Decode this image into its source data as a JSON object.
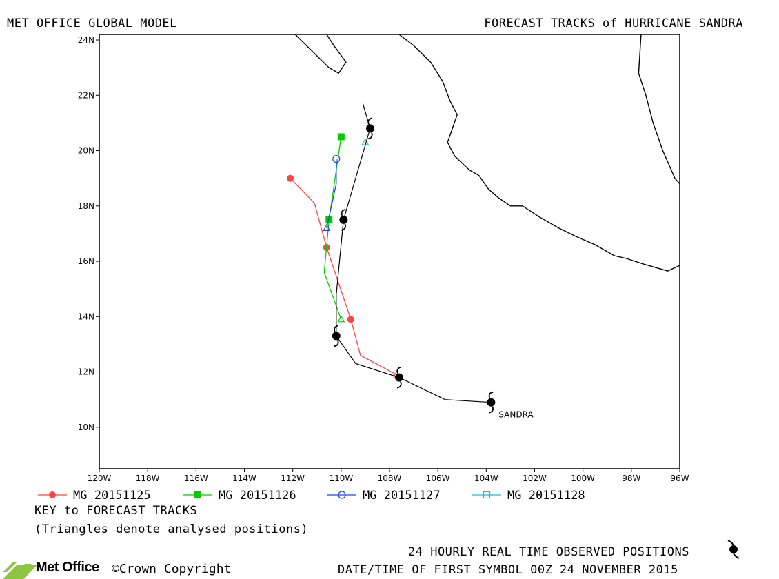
{
  "header": {
    "left_title": "MET OFFICE GLOBAL MODEL",
    "right_title": "FORECAST TRACKS of HURRICANE SANDRA"
  },
  "map": {
    "lon_range": [
      -120,
      -96
    ],
    "lat_range": [
      8.5,
      24.2
    ],
    "x_ticks": [
      {
        "v": -120,
        "label": "120W"
      },
      {
        "v": -118,
        "label": "118W"
      },
      {
        "v": -116,
        "label": "116W"
      },
      {
        "v": -114,
        "label": "114W"
      },
      {
        "v": -112,
        "label": "112W"
      },
      {
        "v": -110,
        "label": "110W"
      },
      {
        "v": -108,
        "label": "108W"
      },
      {
        "v": -106,
        "label": "106W"
      },
      {
        "v": -104,
        "label": "104W"
      },
      {
        "v": -102,
        "label": "102W"
      },
      {
        "v": -100,
        "label": "100W"
      },
      {
        "v": -98,
        "label": "98W"
      },
      {
        "v": -96,
        "label": "96W"
      }
    ],
    "y_ticks": [
      {
        "v": 10,
        "label": "10N"
      },
      {
        "v": 12,
        "label": "12N"
      },
      {
        "v": 14,
        "label": "14N"
      },
      {
        "v": 16,
        "label": "16N"
      },
      {
        "v": 18,
        "label": "18N"
      },
      {
        "v": 20,
        "label": "20N"
      },
      {
        "v": 22,
        "label": "22N"
      },
      {
        "v": 24,
        "label": "24N"
      }
    ],
    "storm_label": "SANDRA",
    "coastlines": [
      [
        [
          -111.9,
          24.2
        ],
        [
          -111.2,
          23.6
        ],
        [
          -110.5,
          23.0
        ],
        [
          -110.1,
          22.8
        ],
        [
          -109.8,
          23.2
        ],
        [
          -110.3,
          23.8
        ],
        [
          -110.6,
          24.2
        ]
      ],
      [
        [
          -107.6,
          24.2
        ],
        [
          -107.0,
          23.8
        ],
        [
          -106.3,
          23.2
        ],
        [
          -105.8,
          22.5
        ],
        [
          -105.5,
          21.8
        ],
        [
          -105.2,
          21.3
        ],
        [
          -105.4,
          20.8
        ],
        [
          -105.6,
          20.3
        ],
        [
          -105.3,
          19.8
        ],
        [
          -104.7,
          19.3
        ],
        [
          -104.3,
          19.1
        ],
        [
          -103.9,
          18.6
        ],
        [
          -103.5,
          18.3
        ],
        [
          -103.0,
          18.0
        ],
        [
          -102.5,
          18.0
        ],
        [
          -101.8,
          17.6
        ],
        [
          -101.0,
          17.2
        ],
        [
          -100.3,
          16.9
        ],
        [
          -99.5,
          16.6
        ],
        [
          -98.7,
          16.2
        ],
        [
          -98.2,
          16.1
        ],
        [
          -97.5,
          15.9
        ],
        [
          -96.5,
          15.65
        ],
        [
          -96.0,
          15.85
        ]
      ],
      [
        [
          -97.6,
          24.2
        ],
        [
          -97.7,
          22.8
        ],
        [
          -97.4,
          22.0
        ],
        [
          -97.1,
          21.0
        ],
        [
          -96.7,
          20.0
        ],
        [
          -96.2,
          19.0
        ],
        [
          -96.0,
          18.8
        ]
      ]
    ],
    "observed_track": [
      [
        -103.8,
        10.9
      ],
      [
        -105.7,
        11.0
      ],
      [
        -107.6,
        11.8
      ],
      [
        -109.4,
        12.3
      ],
      [
        -110.2,
        13.3
      ],
      [
        -110.2,
        14.8
      ],
      [
        -109.9,
        17.5
      ],
      [
        -109.3,
        19.3
      ],
      [
        -108.8,
        20.8
      ],
      [
        -109.1,
        21.7
      ]
    ],
    "observed_symbols": [
      [
        -103.8,
        10.9
      ],
      [
        -107.6,
        11.8
      ],
      [
        -110.2,
        13.3
      ],
      [
        -109.9,
        17.5
      ],
      [
        -108.8,
        20.8
      ]
    ],
    "forecasts": [
      {
        "name": "MG 20151125",
        "color": "#ff4444",
        "marker": "dot",
        "line": [
          [
            -107.7,
            11.9
          ],
          [
            -109.2,
            12.6
          ],
          [
            -109.6,
            13.9
          ],
          [
            -110.6,
            16.5
          ],
          [
            -111.1,
            18.1
          ],
          [
            -112.1,
            19.0
          ]
        ],
        "markers": [
          [
            -109.6,
            13.9
          ],
          [
            -110.6,
            16.5
          ],
          [
            -112.1,
            19.0
          ]
        ],
        "analysed": [
          [
            -107.7,
            11.9
          ]
        ]
      },
      {
        "name": "MG 20151126",
        "color": "#00cc00",
        "marker": "square",
        "line": [
          [
            -110.0,
            13.9
          ],
          [
            -110.7,
            15.6
          ],
          [
            -110.5,
            17.5
          ],
          [
            -110.0,
            20.5
          ]
        ],
        "markers": [
          [
            -110.5,
            17.5
          ],
          [
            -110.0,
            20.5
          ]
        ],
        "analysed": [
          [
            -110.0,
            13.9
          ]
        ]
      },
      {
        "name": "MG 20151127",
        "color": "#2244dd",
        "marker": "circle",
        "line": [
          [
            -110.6,
            17.2
          ],
          [
            -110.2,
            18.8
          ],
          [
            -110.2,
            19.7
          ]
        ],
        "markers": [
          [
            -110.2,
            19.7
          ]
        ],
        "analysed": [
          [
            -110.6,
            17.2
          ]
        ]
      },
      {
        "name": "MG 20151128",
        "color": "#22bbcc",
        "marker": "open-square",
        "line": [],
        "markers": [],
        "analysed": [
          [
            -109.0,
            20.3
          ]
        ]
      }
    ]
  },
  "legend": {
    "items": [
      {
        "name": "MG 20151125",
        "color": "#ff4444",
        "marker": "dot"
      },
      {
        "name": "MG 20151126",
        "color": "#00cc00",
        "marker": "square"
      },
      {
        "name": "MG 20151127",
        "color": "#2244dd",
        "marker": "circle"
      },
      {
        "name": "MG 20151128",
        "color": "#22bbcc",
        "marker": "open-square"
      }
    ],
    "key_title": "KEY to FORECAST TRACKS",
    "key_note": "(Triangles denote analysed positions)"
  },
  "footer": {
    "observed_note": "24 HOURLY REAL TIME OBSERVED POSITIONS",
    "first_symbol": "DATE/TIME OF FIRST SYMBOL 00Z 24 NOVEMBER 2015",
    "brand": "Met Office",
    "copyright": "©Crown Copyright"
  }
}
